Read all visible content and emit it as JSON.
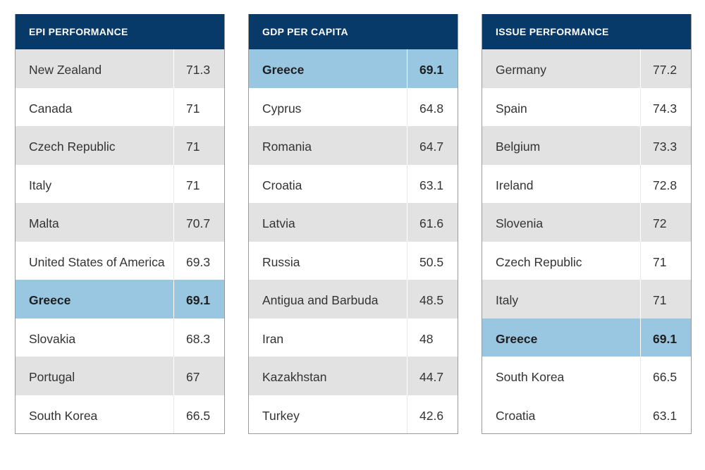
{
  "tables": [
    {
      "title": "EPI PERFORMANCE",
      "rows": [
        {
          "name": "New Zealand",
          "value": "71.3",
          "style": "gray"
        },
        {
          "name": "Canada",
          "value": "71",
          "style": "white"
        },
        {
          "name": "Czech Republic",
          "value": "71",
          "style": "gray"
        },
        {
          "name": "Italy",
          "value": "71",
          "style": "white"
        },
        {
          "name": "Malta",
          "value": "70.7",
          "style": "gray"
        },
        {
          "name": "United States of America",
          "value": "69.3",
          "style": "white"
        },
        {
          "name": "Greece",
          "value": "69.1",
          "style": "hl"
        },
        {
          "name": "Slovakia",
          "value": "68.3",
          "style": "white"
        },
        {
          "name": "Portugal",
          "value": "67",
          "style": "gray"
        },
        {
          "name": "South Korea",
          "value": "66.5",
          "style": "white"
        }
      ]
    },
    {
      "title": "GDP PER CAPITA",
      "rows": [
        {
          "name": "Greece",
          "value": "69.1",
          "style": "hl"
        },
        {
          "name": "Cyprus",
          "value": "64.8",
          "style": "white"
        },
        {
          "name": "Romania",
          "value": "64.7",
          "style": "gray"
        },
        {
          "name": "Croatia",
          "value": "63.1",
          "style": "white"
        },
        {
          "name": "Latvia",
          "value": "61.6",
          "style": "gray"
        },
        {
          "name": "Russia",
          "value": "50.5",
          "style": "white"
        },
        {
          "name": "Antigua and Barbuda",
          "value": "48.5",
          "style": "gray"
        },
        {
          "name": "Iran",
          "value": "48",
          "style": "white"
        },
        {
          "name": "Kazakhstan",
          "value": "44.7",
          "style": "gray"
        },
        {
          "name": "Turkey",
          "value": "42.6",
          "style": "white"
        }
      ]
    },
    {
      "title": "ISSUE PERFORMANCE",
      "rows": [
        {
          "name": "Germany",
          "value": "77.2",
          "style": "gray"
        },
        {
          "name": "Spain",
          "value": "74.3",
          "style": "white"
        },
        {
          "name": "Belgium",
          "value": "73.3",
          "style": "gray"
        },
        {
          "name": "Ireland",
          "value": "72.8",
          "style": "white"
        },
        {
          "name": "Slovenia",
          "value": "72",
          "style": "gray"
        },
        {
          "name": "Czech Republic",
          "value": "71",
          "style": "white"
        },
        {
          "name": "Italy",
          "value": "71",
          "style": "gray"
        },
        {
          "name": "Greece",
          "value": "69.1",
          "style": "hl"
        },
        {
          "name": "South Korea",
          "value": "66.5",
          "style": "white"
        },
        {
          "name": "Croatia",
          "value": "63.1",
          "style": "white"
        }
      ]
    }
  ]
}
